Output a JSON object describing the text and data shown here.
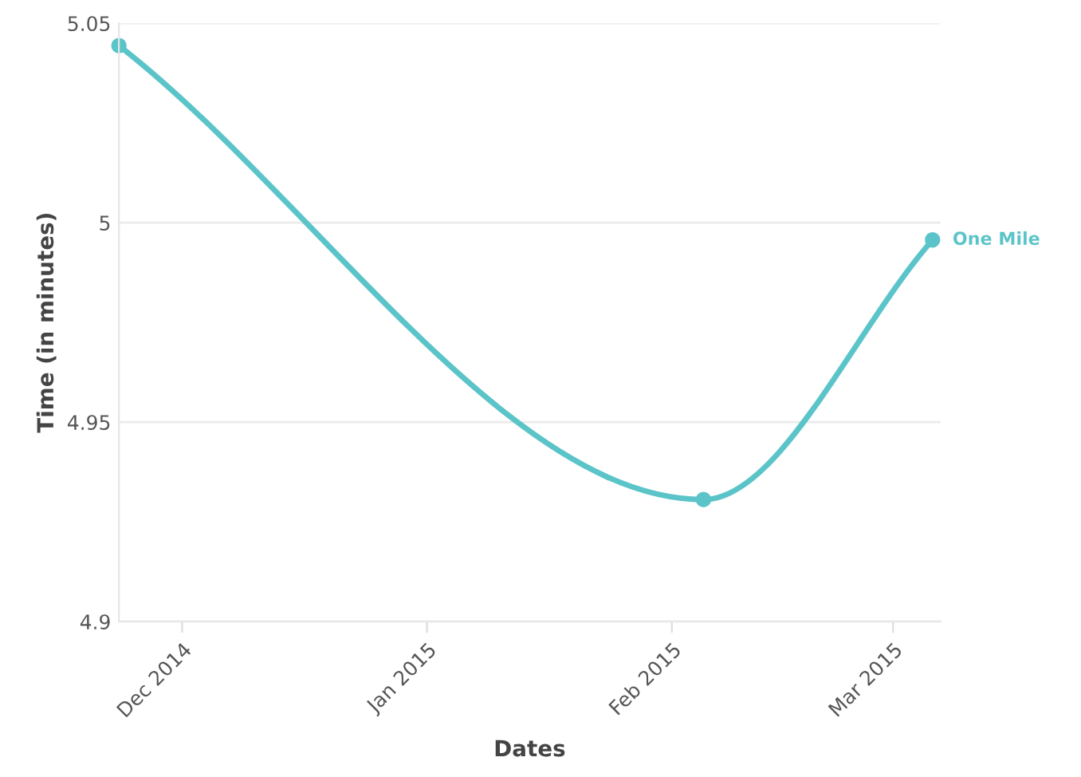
{
  "chart_data": {
    "type": "line",
    "xlabel": "Dates",
    "ylabel": "Time (in minutes)",
    "x": [
      "2014-11-23",
      "2015-02-05",
      "2015-03-06"
    ],
    "series": [
      {
        "name": "One Mile",
        "color": "#5bc4c9",
        "values": [
          5.0444,
          4.9306,
          4.9957
        ]
      }
    ],
    "xlim": [
      "2014-11-23",
      "2015-03-07"
    ],
    "xticks": [
      {
        "value": "2014-12-01",
        "label": "Dec 2014"
      },
      {
        "value": "2015-01-01",
        "label": "Jan 2015"
      },
      {
        "value": "2015-02-01",
        "label": "Feb 2015"
      },
      {
        "value": "2015-03-01",
        "label": "Mar 2015"
      }
    ],
    "ylim": [
      4.9,
      5.05
    ],
    "yticks": [
      4.9,
      4.95,
      5,
      5.05
    ],
    "grid": "y",
    "marker": "circle",
    "line_style": "solid",
    "legend": false
  }
}
